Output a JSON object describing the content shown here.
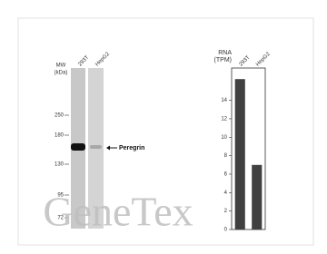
{
  "chart_data": {
    "type": "bar",
    "y_label": [
      "RNA",
      "(TPM)"
    ],
    "categories": [
      "293T",
      "HepG2"
    ],
    "values": [
      16.3,
      7.0
    ],
    "color": "#404040",
    "ylim": [
      0,
      17.5
    ],
    "yticks": [
      0,
      2,
      4,
      6,
      8,
      10,
      12,
      14
    ]
  },
  "blot": {
    "mw_label": [
      "MW",
      "(kDa)"
    ],
    "lanes": [
      "293T",
      "HepG2"
    ],
    "markers": [
      "250",
      "180",
      "130",
      "95",
      "72"
    ],
    "band_label": "Peregrin"
  },
  "watermark": "GeneTex"
}
